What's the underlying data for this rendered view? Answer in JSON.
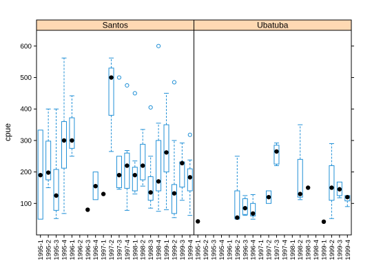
{
  "colors": {
    "box": "#1f8fd6",
    "median": "#000000",
    "strip": "#ffd9b3",
    "frame": "#000000"
  },
  "chart_data": {
    "type": "box",
    "ylabel": "cpue",
    "ylim": [
      0,
      650
    ],
    "yticks": [
      100,
      200,
      300,
      400,
      500,
      600
    ],
    "categories": [
      "1995-1",
      "1995-2",
      "1995-3",
      "1995-4",
      "1996-1",
      "1996-2",
      "1996-3",
      "1996-4",
      "1997-1",
      "1997-2",
      "1997-3",
      "1997-4",
      "1998-1",
      "1998-2",
      "1998-3",
      "1998-4",
      "1999-1",
      "1999-2",
      "1999-3",
      "1999-4"
    ],
    "panels": [
      {
        "name": "Santos",
        "boxes": [
          {
            "cat": "1995-1",
            "lo": 50,
            "q1": 50,
            "med": 190,
            "q3": 333,
            "hi": 333,
            "out": []
          },
          {
            "cat": "1995-2",
            "lo": 150,
            "q1": 175,
            "med": 198,
            "q3": 298,
            "hi": 400,
            "out": []
          },
          {
            "cat": "1995-3",
            "lo": 52,
            "q1": 78,
            "med": 125,
            "q3": 208,
            "hi": 400,
            "out": []
          },
          {
            "cat": "1995-4",
            "lo": 68,
            "q1": 212,
            "med": 300,
            "q3": 360,
            "hi": 562,
            "out": []
          },
          {
            "cat": "1996-1",
            "lo": 250,
            "q1": 275,
            "med": 300,
            "q3": 372,
            "hi": 442,
            "out": []
          },
          {
            "cat": "1996-3",
            "lo": 80,
            "q1": 80,
            "med": 80,
            "q3": 80,
            "hi": 80,
            "out": []
          },
          {
            "cat": "1996-4",
            "lo": 112,
            "q1": 112,
            "med": 155,
            "q3": 200,
            "hi": 200,
            "out": []
          },
          {
            "cat": "1997-1",
            "lo": 130,
            "q1": 130,
            "med": 130,
            "q3": 130,
            "hi": 130,
            "out": []
          },
          {
            "cat": "1997-2",
            "lo": 265,
            "q1": 380,
            "med": 500,
            "q3": 530,
            "hi": 562,
            "out": []
          },
          {
            "cat": "1997-3",
            "lo": 145,
            "q1": 150,
            "med": 190,
            "q3": 250,
            "hi": 250,
            "out": [
              500
            ]
          },
          {
            "cat": "1997-4",
            "lo": 78,
            "q1": 148,
            "med": 220,
            "q3": 260,
            "hi": 268,
            "out": [
              475
            ]
          },
          {
            "cat": "1998-1",
            "lo": 130,
            "q1": 140,
            "med": 190,
            "q3": 215,
            "hi": 235,
            "out": [
              450
            ]
          },
          {
            "cat": "1998-2",
            "lo": 155,
            "q1": 175,
            "med": 220,
            "q3": 288,
            "hi": 335,
            "out": []
          },
          {
            "cat": "1998-3",
            "lo": 85,
            "q1": 110,
            "med": 135,
            "q3": 185,
            "hi": 250,
            "out": [
              405
            ]
          },
          {
            "cat": "1998-4",
            "lo": 75,
            "q1": 140,
            "med": 170,
            "q3": 300,
            "hi": 355,
            "out": [
              600
            ]
          },
          {
            "cat": "1999-1",
            "lo": 80,
            "q1": 200,
            "med": 262,
            "q3": 350,
            "hi": 450,
            "out": []
          },
          {
            "cat": "1999-2",
            "lo": 55,
            "q1": 68,
            "med": 132,
            "q3": 160,
            "hi": 300,
            "out": [
              485
            ]
          },
          {
            "cat": "1999-3",
            "lo": 110,
            "q1": 152,
            "med": 228,
            "q3": 232,
            "hi": 292,
            "out": []
          },
          {
            "cat": "1999-4",
            "lo": 62,
            "q1": 140,
            "med": 183,
            "q3": 210,
            "hi": 238,
            "out": [
              318
            ]
          }
        ]
      },
      {
        "name": "Ubatuba",
        "boxes": [
          {
            "cat": "1995-1",
            "lo": 43,
            "q1": 43,
            "med": 43,
            "q3": 43,
            "hi": 43,
            "out": []
          },
          {
            "cat": "1996-2",
            "lo": 50,
            "q1": 52,
            "med": 55,
            "q3": 140,
            "hi": 250,
            "out": []
          },
          {
            "cat": "1996-3",
            "lo": 62,
            "q1": 65,
            "med": 85,
            "q3": 115,
            "hi": 125,
            "out": []
          },
          {
            "cat": "1996-4",
            "lo": 50,
            "q1": 60,
            "med": 68,
            "q3": 100,
            "hi": 128,
            "out": []
          },
          {
            "cat": "1997-2",
            "lo": 100,
            "q1": 100,
            "med": 120,
            "q3": 140,
            "hi": 140,
            "out": []
          },
          {
            "cat": "1997-3",
            "lo": 220,
            "q1": 225,
            "med": 265,
            "q3": 285,
            "hi": 292,
            "out": []
          },
          {
            "cat": "1998-2",
            "lo": 112,
            "q1": 120,
            "med": 130,
            "q3": 240,
            "hi": 350,
            "out": []
          },
          {
            "cat": "1998-3",
            "lo": 150,
            "q1": 150,
            "med": 150,
            "q3": 150,
            "hi": 150,
            "out": []
          },
          {
            "cat": "1999-1",
            "lo": 42,
            "q1": 42,
            "med": 42,
            "q3": 42,
            "hi": 42,
            "out": []
          },
          {
            "cat": "1999-2",
            "lo": 52,
            "q1": 110,
            "med": 150,
            "q3": 220,
            "hi": 290,
            "out": []
          },
          {
            "cat": "1999-3",
            "lo": 118,
            "q1": 125,
            "med": 145,
            "q3": 168,
            "hi": 168,
            "out": []
          },
          {
            "cat": "1999-4",
            "lo": 90,
            "q1": 108,
            "med": 120,
            "q3": 125,
            "hi": 125,
            "out": []
          }
        ]
      }
    ]
  }
}
